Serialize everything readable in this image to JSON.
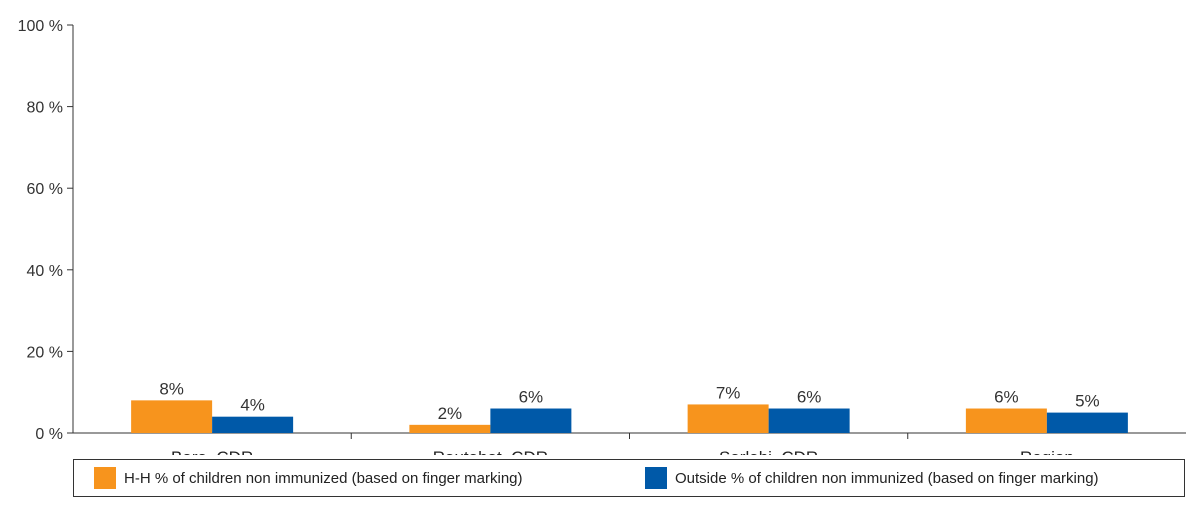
{
  "chart_data": {
    "type": "bar",
    "categories": [
      "Bara, CDR",
      "Rautahat, CDR",
      "Sarlahi, CDR",
      "Region"
    ],
    "series": [
      {
        "name": "H-H % of children non immunized (based on finger marking)",
        "values": [
          8,
          2,
          7,
          6
        ],
        "labels": [
          "8%",
          "2%",
          "7%",
          "6%"
        ],
        "color": "#F7941D"
      },
      {
        "name": "Outside % of children non immunized (based on finger marking)",
        "values": [
          4,
          6,
          6,
          5
        ],
        "labels": [
          "4%",
          "6%",
          "6%",
          "5%"
        ],
        "color": "#0059A8"
      }
    ],
    "ylim": [
      0,
      100
    ],
    "yticks": [
      0,
      20,
      40,
      60,
      80,
      100
    ],
    "ytick_labels": [
      "0 %",
      "20 %",
      "40 %",
      "60 %",
      "80 %",
      "100 %"
    ],
    "title": "",
    "xlabel": "",
    "ylabel": "",
    "grid": false,
    "legend_position": "bottom"
  }
}
